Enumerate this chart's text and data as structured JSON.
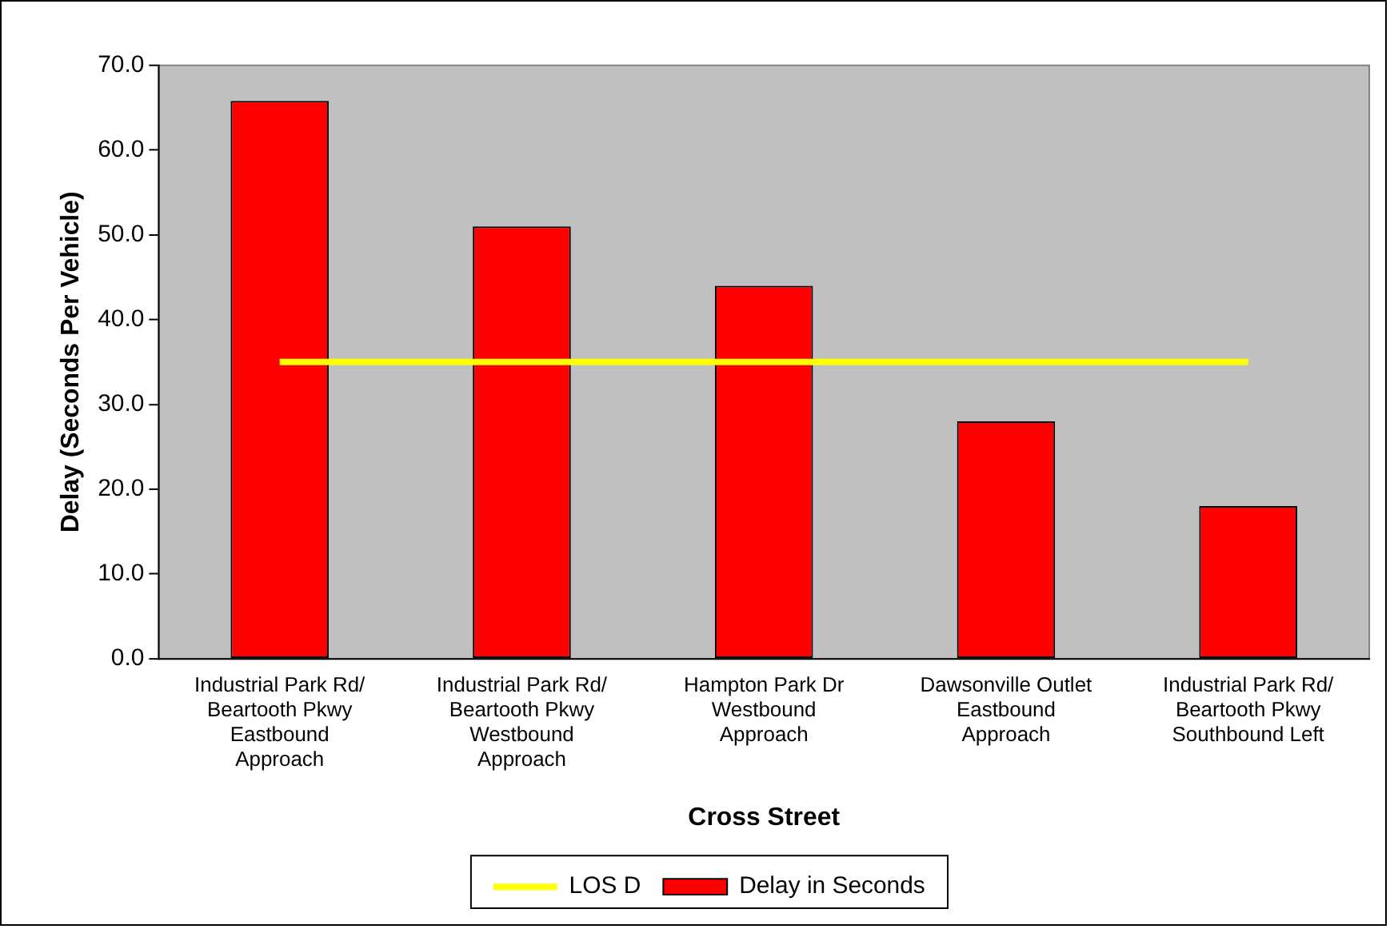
{
  "chart_data": {
    "type": "bar",
    "xlabel": "Cross Street",
    "ylabel": "Delay (Seconds Per Vehicle)",
    "categories": [
      "Industrial Park Rd/\nBeartooth Pkwy\nEastbound\nApproach",
      "Industrial Park Rd/\nBeartooth Pkwy\nWestbound\nApproach",
      "Hampton Park Dr\nWestbound\nApproach",
      "Dawsonville Outlet\nEastbound\nApproach",
      "Industrial Park Rd/\nBeartooth Pkwy\nSouthbound Left"
    ],
    "series": [
      {
        "name": "Delay in Seconds",
        "color": "#ff0000",
        "values": [
          65.8,
          51.0,
          44.0,
          28.0,
          18.0
        ]
      },
      {
        "name": "LOS D",
        "type": "line",
        "color": "#ffff00",
        "values": [
          35,
          35,
          35,
          35,
          35
        ]
      }
    ],
    "ylim": [
      0,
      70
    ],
    "yticks": [
      {
        "value": 0,
        "label": "0.0"
      },
      {
        "value": 10,
        "label": "10.0"
      },
      {
        "value": 20,
        "label": "20.0"
      },
      {
        "value": 30,
        "label": "30.0"
      },
      {
        "value": 40,
        "label": "40.0"
      },
      {
        "value": 50,
        "label": "50.0"
      },
      {
        "value": 60,
        "label": "60.0"
      },
      {
        "value": 70,
        "label": "70.0"
      }
    ],
    "grid": false,
    "legend": "bottom",
    "marker": "none"
  }
}
